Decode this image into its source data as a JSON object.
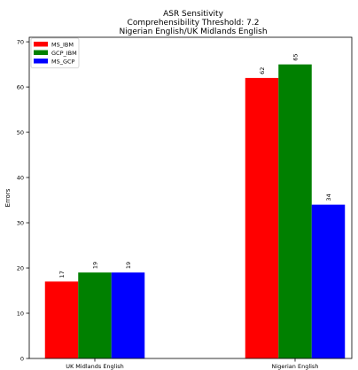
{
  "chart_data": {
    "type": "bar",
    "title_lines": [
      "ASR Sensitivity",
      "Comprehensibility Threshold: 7.2",
      "Nigerian English/UK Midlands English"
    ],
    "xlabel": "",
    "ylabel": "Errors",
    "categories": [
      "UK Midlands English",
      "Nigerian English"
    ],
    "series": [
      {
        "name": "MS_IBM",
        "color": "#ff0000",
        "values": [
          17,
          62
        ]
      },
      {
        "name": "GCP_IBM",
        "color": "#008000",
        "values": [
          19,
          65
        ]
      },
      {
        "name": "MS_GCP",
        "color": "#0000ff",
        "values": [
          19,
          34
        ]
      }
    ],
    "ylim": [
      0,
      71
    ],
    "yticks": [
      0,
      10,
      20,
      30,
      40,
      50,
      60,
      70
    ],
    "grid": false,
    "legend_position": "top-left"
  }
}
